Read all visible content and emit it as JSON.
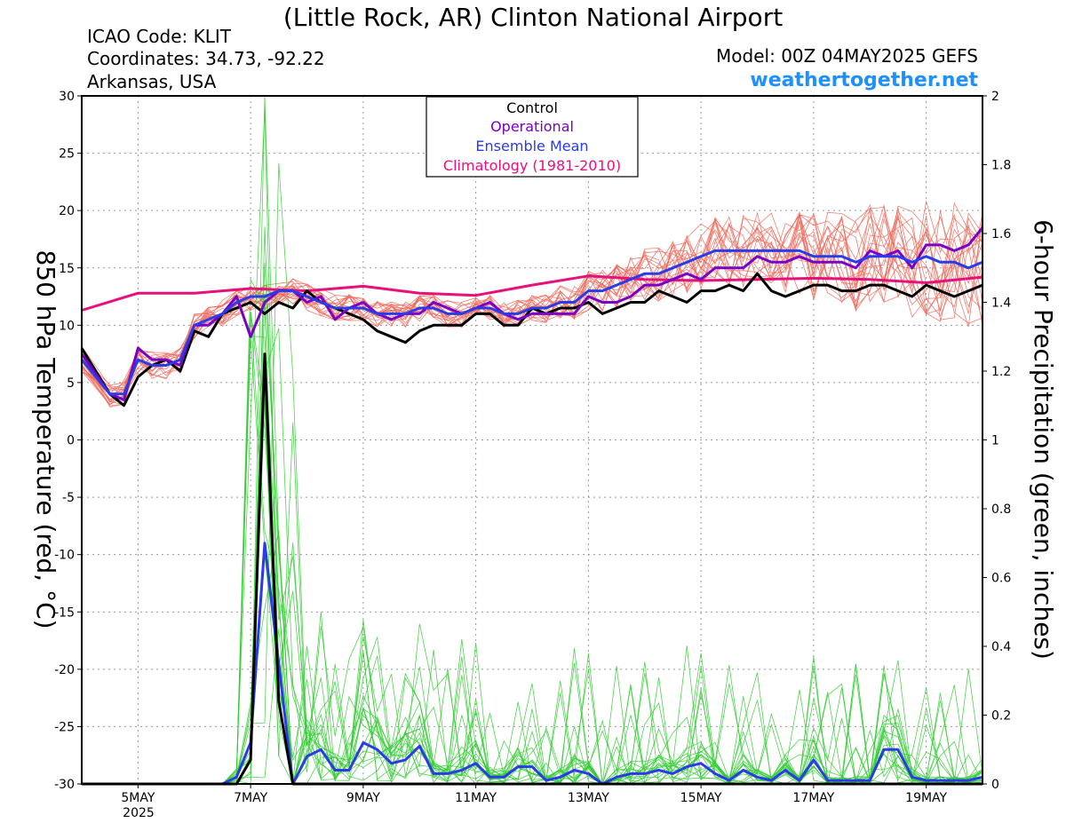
{
  "header": {
    "title": "(Little Rock, AR) Clinton National Airport",
    "icao": "ICAO Code: KLIT",
    "coords": "Coordinates: 34.73, -92.22",
    "region": "Arkansas, USA",
    "model": "Model: 00Z 04MAY2025 GEFS",
    "site": "weathertogether.net"
  },
  "colors": {
    "control": "#000000",
    "operational": "#7a00c8",
    "ensemble_mean": "#2a3be8",
    "climatology": "#e8107a",
    "members_temp": "#f06a5c",
    "members_precip": "#33cc33",
    "site": "#1e90ff"
  },
  "chart_data": {
    "type": "line",
    "xlabel": "",
    "ylabel": "850 hPa Temperature (red, °C)",
    "y2label": "6-hour Precipitation (green, inches)",
    "ylim": [
      -30,
      30
    ],
    "y2lim": [
      0,
      2
    ],
    "yticks": [
      "30",
      "25",
      "20",
      "15",
      "10",
      "5",
      "0",
      "-5",
      "-10",
      "-15",
      "-20",
      "-25",
      "-30"
    ],
    "y2ticks": [
      "2",
      "1.8",
      "1.6",
      "1.4",
      "1.2",
      "1",
      "0.8",
      "0.6",
      "0.4",
      "0.2",
      "0"
    ],
    "xlim": [
      4.0,
      20.0
    ],
    "xtick_day": [
      5,
      7,
      9,
      11,
      13,
      15,
      17,
      19
    ],
    "xticks": [
      "5MAY",
      "7MAY",
      "9MAY",
      "11MAY",
      "13MAY",
      "15MAY",
      "17MAY",
      "19MAY"
    ],
    "xyear": "2025",
    "grid": true,
    "legend": {
      "position": "top-center",
      "entries": [
        "Control",
        "Operational",
        "Ensemble Mean",
        "Climatology (1981-2010)"
      ]
    },
    "series": [
      {
        "name": "Control",
        "axis": "temp",
        "x": [
          4.0,
          4.5,
          4.75,
          5.0,
          5.25,
          5.5,
          5.75,
          6.0,
          6.25,
          6.5,
          6.75,
          7.0,
          7.25,
          7.5,
          7.75,
          8.0,
          8.25,
          8.5,
          8.75,
          9.0,
          9.25,
          9.5,
          9.75,
          10.0,
          10.25,
          10.5,
          10.75,
          11.0,
          11.25,
          11.5,
          11.75,
          12.0,
          12.25,
          12.5,
          12.75,
          13.0,
          13.25,
          13.5,
          13.75,
          14.0,
          14.25,
          14.5,
          14.75,
          15.0,
          15.25,
          15.5,
          15.75,
          16.0,
          16.25,
          16.5,
          16.75,
          17.0,
          17.25,
          17.5,
          17.75,
          18.0,
          18.25,
          18.5,
          18.75,
          19.0,
          19.25,
          19.5,
          19.75,
          20.0
        ],
        "y": [
          8,
          4,
          3,
          5.5,
          6.5,
          7,
          6,
          9.5,
          9,
          11,
          11.5,
          12,
          11,
          12,
          11.5,
          13,
          12,
          11.5,
          11,
          10.5,
          9.5,
          9,
          8.5,
          9.5,
          10,
          10,
          10,
          11,
          11,
          10,
          10,
          11.5,
          11,
          11.5,
          11.5,
          12,
          11,
          11.5,
          12,
          12,
          13,
          12.5,
          12,
          13,
          13,
          13.5,
          13,
          14.5,
          13,
          12.5,
          13,
          13.5,
          13.5,
          13,
          13,
          13.5,
          13.5,
          13,
          12.5,
          13.5,
          13,
          12.5,
          13,
          13.5
        ]
      },
      {
        "name": "Operational",
        "axis": "temp",
        "x": [
          4.0,
          4.5,
          4.75,
          5.0,
          5.25,
          5.5,
          5.75,
          6.0,
          6.25,
          6.5,
          6.75,
          7.0,
          7.25,
          7.5,
          7.75,
          8.0,
          8.25,
          8.5,
          8.75,
          9.0,
          9.25,
          9.5,
          9.75,
          10.0,
          10.25,
          10.5,
          10.75,
          11.0,
          11.25,
          11.5,
          11.75,
          12.0,
          12.25,
          12.5,
          12.75,
          13.0,
          13.25,
          13.5,
          13.75,
          14.0,
          14.25,
          14.5,
          14.75,
          15.0,
          15.25,
          15.5,
          15.75,
          16.0,
          16.25,
          16.5,
          16.75,
          17.0,
          17.25,
          17.5,
          17.75,
          18.0,
          18.25,
          18.5,
          18.75,
          19.0,
          19.25,
          19.5,
          19.75,
          20.0
        ],
        "y": [
          7.5,
          4,
          3.5,
          8,
          7,
          7,
          6.5,
          10,
          10,
          11,
          12.5,
          9,
          12,
          13,
          13,
          12,
          12.5,
          10.5,
          11.5,
          12,
          11,
          10.5,
          11,
          11,
          12,
          11.5,
          11,
          11.5,
          12,
          11,
          10.5,
          11,
          11,
          11,
          11,
          12.5,
          12,
          12,
          12.5,
          13.5,
          13.5,
          14,
          14.5,
          14,
          15,
          15,
          15,
          16,
          15.5,
          15.5,
          16,
          15.5,
          15.5,
          15.5,
          15,
          16.5,
          16,
          16.5,
          15,
          17,
          17,
          16.5,
          17,
          18.5
        ]
      },
      {
        "name": "Ensemble Mean",
        "axis": "temp",
        "x": [
          4.0,
          4.5,
          4.75,
          5.0,
          5.25,
          5.5,
          5.75,
          6.0,
          6.25,
          6.5,
          6.75,
          7.0,
          7.25,
          7.5,
          7.75,
          8.0,
          8.25,
          8.5,
          8.75,
          9.0,
          9.25,
          9.5,
          9.75,
          10.0,
          10.25,
          10.5,
          10.75,
          11.0,
          11.25,
          11.5,
          11.75,
          12.0,
          12.25,
          12.5,
          12.75,
          13.0,
          13.25,
          13.5,
          13.75,
          14.0,
          14.25,
          14.5,
          14.75,
          15.0,
          15.25,
          15.5,
          15.75,
          16.0,
          16.25,
          16.5,
          16.75,
          17.0,
          17.25,
          17.5,
          17.75,
          18.0,
          18.25,
          18.5,
          18.75,
          19.0,
          19.25,
          19.5,
          19.75,
          20.0
        ],
        "y": [
          7,
          4,
          4,
          7,
          6.5,
          6.5,
          7,
          10,
          10.5,
          11,
          12,
          12.5,
          12.5,
          13,
          13,
          12.5,
          12,
          11.5,
          11.5,
          11.5,
          11,
          11,
          11,
          11.5,
          11.5,
          11,
          11,
          11.5,
          11.5,
          11,
          11,
          11.5,
          11.5,
          12,
          12,
          13,
          13,
          13.5,
          14,
          14.5,
          14.5,
          15,
          15.5,
          16,
          16.5,
          16.5,
          16.5,
          16.5,
          16.5,
          16.5,
          16.5,
          16,
          16,
          16,
          15.5,
          16,
          16,
          16,
          15.5,
          16,
          15.5,
          15.5,
          15,
          15.5
        ]
      },
      {
        "name": "Climatology (1981-2010)",
        "axis": "temp",
        "x": [
          4.0,
          5.0,
          6.0,
          7.0,
          8.0,
          9.0,
          10.0,
          11.0,
          12.0,
          13.0,
          14.0,
          15.0,
          16.0,
          17.0,
          18.0,
          19.0,
          20.0
        ],
        "y": [
          11.3,
          12.8,
          12.8,
          13.2,
          13,
          13.4,
          12.8,
          12.6,
          13.5,
          14.3,
          14,
          13.9,
          14,
          14.1,
          14,
          13.7,
          14.2
        ]
      },
      {
        "name": "Ensemble Mean",
        "axis": "precip",
        "x": [
          4.0,
          4.5,
          5.0,
          5.5,
          6.0,
          6.5,
          6.75,
          7.0,
          7.25,
          7.5,
          7.75,
          8.0,
          8.25,
          8.5,
          8.75,
          9.0,
          9.25,
          9.5,
          9.75,
          10.0,
          10.25,
          10.5,
          10.75,
          11.0,
          11.25,
          11.5,
          11.75,
          12.0,
          12.25,
          12.5,
          12.75,
          13.0,
          13.25,
          13.5,
          13.75,
          14.0,
          14.25,
          14.5,
          14.75,
          15.0,
          15.25,
          15.5,
          15.75,
          16.0,
          16.25,
          16.5,
          16.75,
          17.0,
          17.25,
          17.5,
          17.75,
          18.0,
          18.25,
          18.5,
          18.75,
          19.0,
          19.25,
          19.5,
          19.75,
          20.0
        ],
        "y": [
          0,
          0,
          0,
          0,
          0,
          0,
          0.02,
          0.12,
          0.7,
          0.35,
          0,
          0.08,
          0.1,
          0.04,
          0.04,
          0.12,
          0.1,
          0.06,
          0.07,
          0.11,
          0.03,
          0.03,
          0.04,
          0.06,
          0.02,
          0.02,
          0.05,
          0.05,
          0.01,
          0.02,
          0.04,
          0.03,
          0,
          0.02,
          0.03,
          0.03,
          0.04,
          0.03,
          0.05,
          0.06,
          0.03,
          0.01,
          0.04,
          0.02,
          0.01,
          0.04,
          0.01,
          0.07,
          0.01,
          0.01,
          0.01,
          0.01,
          0.1,
          0.1,
          0.02,
          0.01,
          0.01,
          0.01,
          0.01,
          0.02
        ]
      },
      {
        "name": "Control",
        "axis": "precip",
        "x": [
          4.0,
          5.0,
          6.0,
          6.75,
          7.0,
          7.25,
          7.5,
          7.75,
          8.0,
          9.0,
          10.0,
          11.0,
          12.0,
          13.0,
          14.0,
          15.0,
          16.0,
          17.0,
          18.0,
          19.0,
          20.0
        ],
        "y": [
          0,
          0,
          0,
          0,
          0.07,
          1.25,
          0.24,
          0,
          0,
          0,
          0,
          0,
          0,
          0,
          0,
          0,
          0,
          0,
          0,
          0,
          0
        ]
      }
    ],
    "annotations": []
  }
}
